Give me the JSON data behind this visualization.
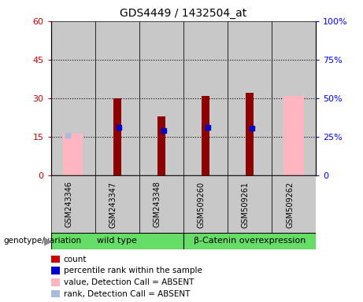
{
  "title": "GDS4449 / 1432504_at",
  "samples": [
    "GSM243346",
    "GSM243347",
    "GSM243348",
    "GSM509260",
    "GSM509261",
    "GSM509262"
  ],
  "group_labels": [
    "wild type",
    "β-Catenin overexpression"
  ],
  "count_values": [
    null,
    30,
    23,
    31,
    32,
    null
  ],
  "count_color": "#8B0000",
  "percentile_values": [
    null,
    31,
    29,
    31,
    30.5,
    null
  ],
  "percentile_color": "#0000CC",
  "absent_value_values": [
    16,
    null,
    null,
    null,
    null,
    31
  ],
  "absent_value_color": "#FFB6C1",
  "absent_rank_values": [
    26,
    null,
    null,
    null,
    null,
    null
  ],
  "absent_rank_color": "#AABBDD",
  "ylim_left": [
    0,
    60
  ],
  "ylim_right": [
    0,
    100
  ],
  "yticks_left": [
    0,
    15,
    30,
    45,
    60
  ],
  "yticks_right": [
    0,
    25,
    50,
    75,
    100
  ],
  "ytick_labels_left": [
    "0",
    "15",
    "30",
    "45",
    "60"
  ],
  "ytick_labels_right": [
    "0",
    "25%",
    "50%",
    "75%",
    "100%"
  ],
  "bg_color": "#C8C8C8",
  "plot_bg": "#FFFFFF",
  "green_color": "#66DD66",
  "legend_items": [
    {
      "label": "count",
      "color": "#CC0000"
    },
    {
      "label": "percentile rank within the sample",
      "color": "#0000CC"
    },
    {
      "label": "value, Detection Call = ABSENT",
      "color": "#FFB6C1"
    },
    {
      "label": "rank, Detection Call = ABSENT",
      "color": "#AABBDD"
    }
  ],
  "genotype_label": "genotype/variation"
}
